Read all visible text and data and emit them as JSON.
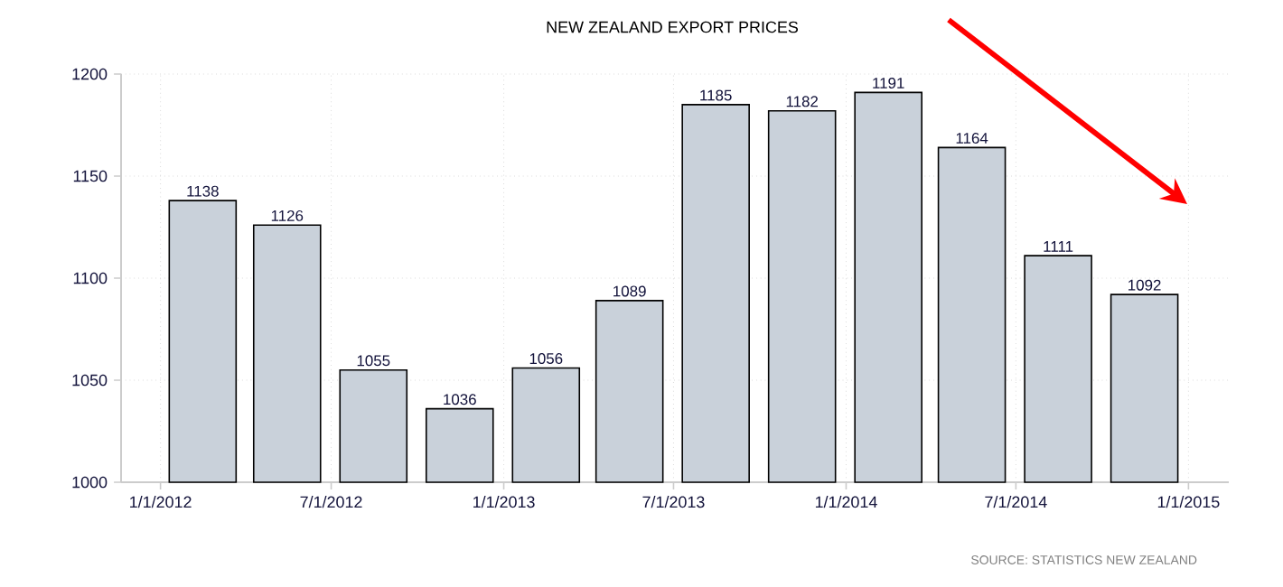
{
  "chart_data": {
    "type": "bar",
    "title": "NEW ZEALAND EXPORT PRICES",
    "x": [
      "2012-02-15",
      "2012-05-15",
      "2012-08-15",
      "2012-11-15",
      "2013-02-15",
      "2013-05-15",
      "2013-08-15",
      "2013-11-15",
      "2014-02-15",
      "2014-05-15",
      "2014-08-15",
      "2014-11-15"
    ],
    "values": [
      1138,
      1126,
      1055,
      1036,
      1056,
      1089,
      1185,
      1182,
      1191,
      1164,
      1111,
      1092
    ],
    "color": "#c9d1da",
    "data_labels": true,
    "xlim": [
      "2011-11-20",
      "2015-02-13"
    ],
    "xticks": [
      {
        "value": "2012-01-01",
        "label": "1/1/2012"
      },
      {
        "value": "2012-07-01",
        "label": "7/1/2012"
      },
      {
        "value": "2013-01-01",
        "label": "1/1/2013"
      },
      {
        "value": "2013-07-01",
        "label": "7/1/2013"
      },
      {
        "value": "2014-01-01",
        "label": "1/1/2014"
      },
      {
        "value": "2014-07-01",
        "label": "7/1/2014"
      },
      {
        "value": "2015-01-01",
        "label": "1/1/2015"
      }
    ],
    "ylim": [
      1000,
      1200
    ],
    "yticks": [
      1000,
      1050,
      1100,
      1150,
      1200
    ],
    "grid": true,
    "annotations": [
      "SOURCE: STATISTICS NEW ZEALAND"
    ]
  }
}
